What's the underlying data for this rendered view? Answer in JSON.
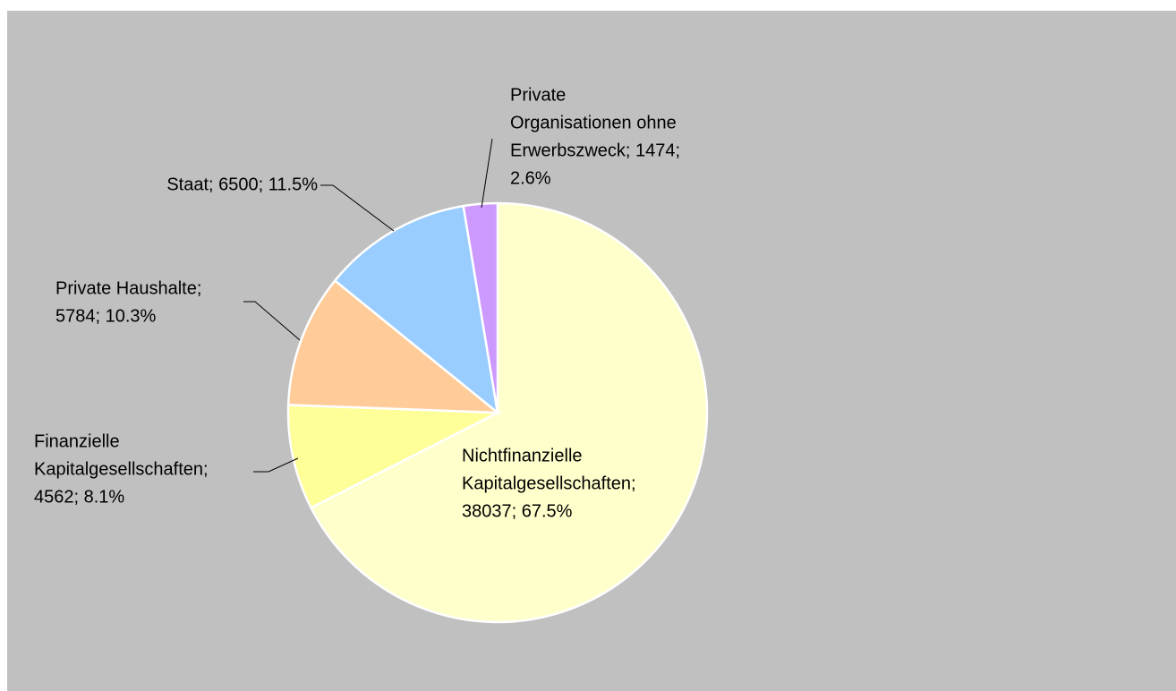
{
  "chart_data": {
    "type": "pie",
    "labels": [
      [
        "Nichtfinanzielle",
        "Kapitalgesellschaften;",
        "38037; 67.5%"
      ],
      [
        "Finanzielle",
        "Kapitalgesellschaften;",
        "4562; 8.1%"
      ],
      [
        "Private Haushalte;",
        "5784; 10.3%"
      ],
      [
        "Staat; 6500; 11.5%"
      ],
      [
        "Private",
        "Organisationen ohne",
        "Erwerbszweck; 1474;",
        "2.6%"
      ]
    ],
    "values": [
      38037,
      4562,
      5784,
      6500,
      1474
    ],
    "colors": [
      "#ffffcc",
      "#ffff99",
      "#ffcc99",
      "#99ccff",
      "#cc99ff"
    ]
  }
}
